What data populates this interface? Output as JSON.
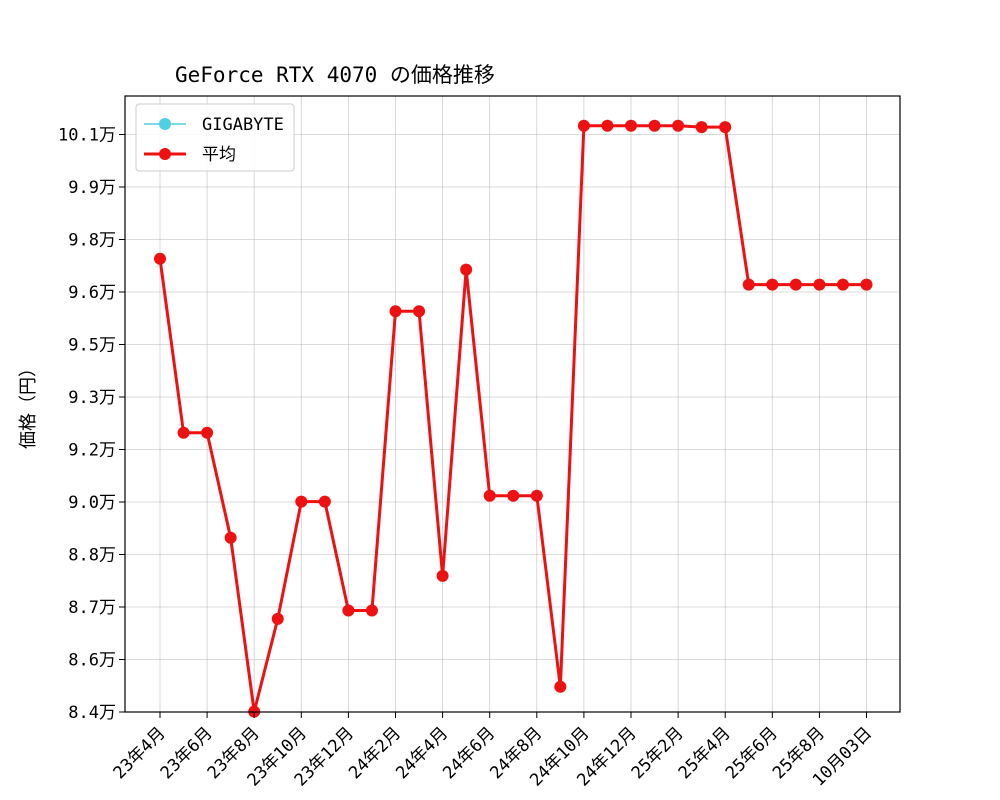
{
  "chart_data": {
    "type": "line",
    "title": "GeForce RTX 4070 の価格推移",
    "xlabel": "",
    "ylabel": "価格（円）",
    "ylim": [
      84000,
      101600
    ],
    "grid": true,
    "legend_position": "top-left",
    "y_ticks": [
      {
        "value": 84000,
        "label": "8.4万"
      },
      {
        "value": 85500,
        "label": "8.6万"
      },
      {
        "value": 87000,
        "label": "8.7万"
      },
      {
        "value": 88500,
        "label": "8.8万"
      },
      {
        "value": 90000,
        "label": "9.0万"
      },
      {
        "value": 91500,
        "label": "9.2万"
      },
      {
        "value": 93000,
        "label": "9.3万"
      },
      {
        "value": 94500,
        "label": "9.5万"
      },
      {
        "value": 96000,
        "label": "9.6万"
      },
      {
        "value": 97500,
        "label": "9.8万"
      },
      {
        "value": 99000,
        "label": "9.9万"
      },
      {
        "value": 100500,
        "label": "10.1万"
      }
    ],
    "x_ticks": [
      {
        "index": 0,
        "label": "23年4月"
      },
      {
        "index": 2,
        "label": "23年6月"
      },
      {
        "index": 4,
        "label": "23年8月"
      },
      {
        "index": 6,
        "label": "23年10月"
      },
      {
        "index": 8,
        "label": "23年12月"
      },
      {
        "index": 10,
        "label": "24年2月"
      },
      {
        "index": 12,
        "label": "24年4月"
      },
      {
        "index": 14,
        "label": "24年6月"
      },
      {
        "index": 16,
        "label": "24年8月"
      },
      {
        "index": 18,
        "label": "24年10月"
      },
      {
        "index": 20,
        "label": "24年12月"
      },
      {
        "index": 22,
        "label": "25年2月"
      },
      {
        "index": 24,
        "label": "25年4月"
      },
      {
        "index": 26,
        "label": "25年6月"
      },
      {
        "index": 28,
        "label": "25年8月"
      },
      {
        "index": 30,
        "label": "10月03日"
      }
    ],
    "series": [
      {
        "name": "GIGABYTE",
        "color": "#4dd0e1",
        "values": []
      },
      {
        "name": "平均",
        "color": "#ee1111",
        "values": [
          96950,
          91980,
          91980,
          88980,
          84010,
          86660,
          90010,
          90010,
          86900,
          86900,
          95450,
          95450,
          87890,
          96640,
          90180,
          90180,
          90180,
          84720,
          100750,
          100750,
          100750,
          100750,
          100750,
          100710,
          100710,
          96210,
          96210,
          96210,
          96210,
          96210,
          96210
        ]
      }
    ]
  }
}
